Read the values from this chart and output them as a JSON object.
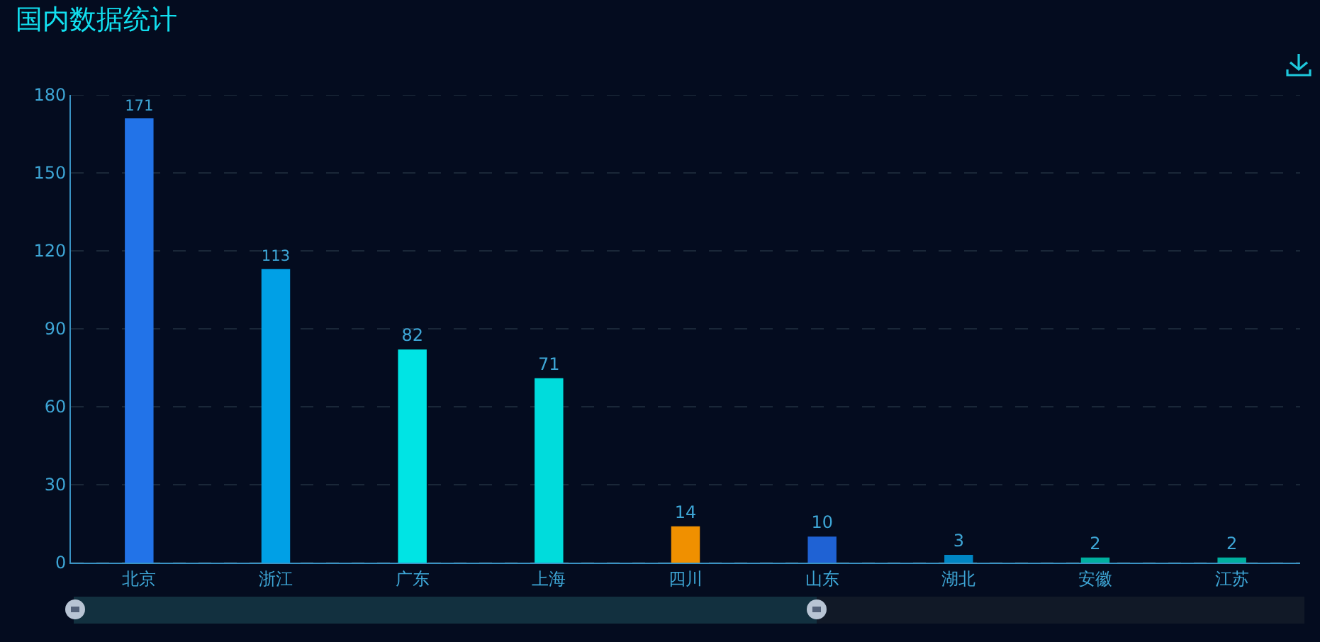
{
  "chart_data": {
    "type": "bar",
    "title": "国内数据统计",
    "categories": [
      "北京",
      "浙江",
      "广东",
      "上海",
      "四川",
      "山东",
      "湖北",
      "安徽",
      "江苏"
    ],
    "values": [
      171,
      113,
      82,
      71,
      14,
      10,
      3,
      2,
      2
    ],
    "colors": [
      "#2273e8",
      "#00a0e6",
      "#00e4e4",
      "#00dcdc",
      "#f09000",
      "#1f62d4",
      "#0086c4",
      "#00b0a0",
      "#00b0a0"
    ],
    "ylim": [
      0,
      180
    ],
    "yticks": [
      0,
      30,
      60,
      90,
      120,
      150,
      180
    ],
    "grid": "y",
    "data_labels": true
  }
}
